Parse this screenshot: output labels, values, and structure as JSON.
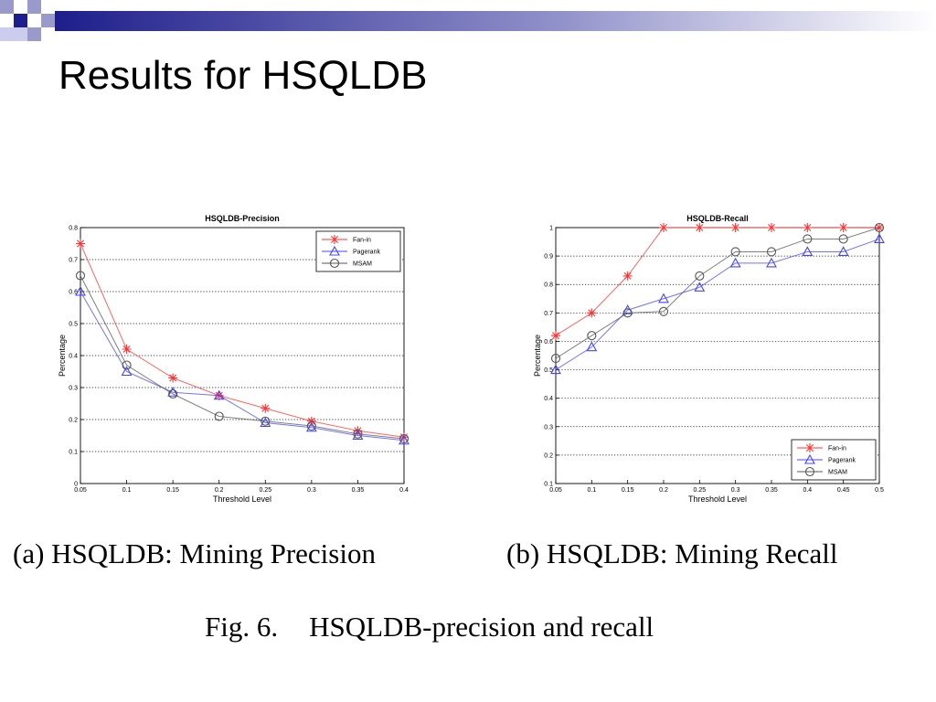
{
  "slide": {
    "title": "Results for HSQLDB",
    "caption_a": "(a) HSQLDB: Mining Precision",
    "caption_b": "(b) HSQLDB: Mining Recall",
    "figure_label": "Fig. 6.",
    "figure_text": "HSQLDB-precision and recall",
    "colors": {
      "header_blue": "#1e1e8c",
      "header_light": "#9999cc"
    }
  },
  "chart_data": [
    {
      "type": "line",
      "title": "HSQLDB-Precision",
      "xlabel": "Threshold Level",
      "ylabel": "Percentage",
      "xlim": [
        0.05,
        0.4
      ],
      "ylim": [
        0,
        0.8
      ],
      "xticks": [
        "0.05",
        "0.1",
        "0.15",
        "0.2",
        "0.25",
        "0.3",
        "0.35",
        "0.4"
      ],
      "yticks": [
        "0",
        "0.1",
        "0.2",
        "0.3",
        "0.4",
        "0.5",
        "0.6",
        "0.7",
        "0.8"
      ],
      "grid": "horizontal-dotted",
      "legend": "top-right",
      "x": [
        0.05,
        0.1,
        0.15,
        0.2,
        0.25,
        0.3,
        0.35,
        0.4
      ],
      "series": [
        {
          "name": "Fan-in",
          "color": "#ff3333",
          "marker": "star",
          "values": [
            0.75,
            0.42,
            0.33,
            0.275,
            0.235,
            0.195,
            0.165,
            0.145
          ]
        },
        {
          "name": "Pagerank",
          "color": "#4444ff",
          "marker": "triangle",
          "values": [
            0.6,
            0.35,
            0.285,
            0.275,
            0.19,
            0.175,
            0.15,
            0.135
          ]
        },
        {
          "name": "MSAM",
          "color": "#555555",
          "marker": "circle",
          "values": [
            0.65,
            0.37,
            0.28,
            0.21,
            0.195,
            0.18,
            0.155,
            0.14
          ]
        }
      ]
    },
    {
      "type": "line",
      "title": "HSQLDB-Recall",
      "xlabel": "Threshold Level",
      "ylabel": "Percentage",
      "xlim": [
        0.05,
        0.5
      ],
      "ylim": [
        0.1,
        1.0
      ],
      "xticks": [
        "0.05",
        "0.1",
        "0.15",
        "0.2",
        "0.25",
        "0.3",
        "0.35",
        "0.4",
        "0.45",
        "0.5"
      ],
      "yticks": [
        "0.1",
        "0.2",
        "0.3",
        "0.4",
        "0.5",
        "0.6",
        "0.7",
        "0.8",
        "0.9",
        "1"
      ],
      "grid": "horizontal-dotted",
      "legend": "bottom-right",
      "x": [
        0.05,
        0.1,
        0.15,
        0.2,
        0.25,
        0.3,
        0.35,
        0.4,
        0.45,
        0.5
      ],
      "series": [
        {
          "name": "Fan-in",
          "color": "#ff3333",
          "marker": "star",
          "values": [
            0.62,
            0.7,
            0.83,
            1.0,
            1.0,
            1.0,
            1.0,
            1.0,
            1.0,
            1.0
          ]
        },
        {
          "name": "Pagerank",
          "color": "#4444ff",
          "marker": "triangle",
          "values": [
            0.5,
            0.58,
            0.71,
            0.75,
            0.79,
            0.875,
            0.875,
            0.915,
            0.915,
            0.96
          ]
        },
        {
          "name": "MSAM",
          "color": "#555555",
          "marker": "circle",
          "values": [
            0.54,
            0.62,
            0.7,
            0.705,
            0.83,
            0.915,
            0.915,
            0.96,
            0.96,
            1.0
          ]
        }
      ]
    }
  ]
}
